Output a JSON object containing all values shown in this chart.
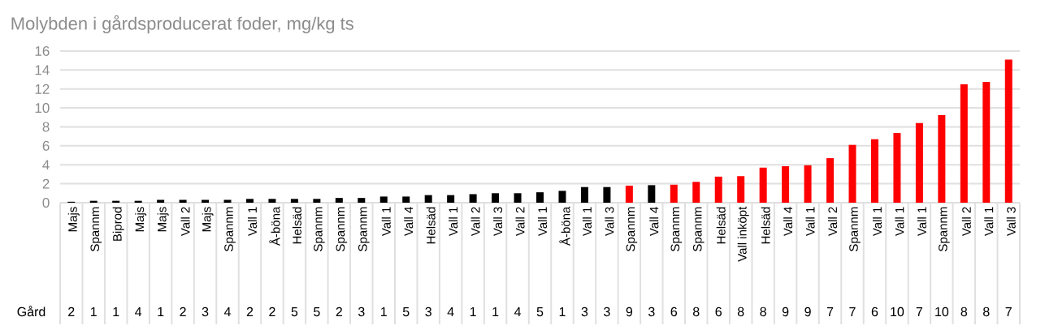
{
  "chart_data": {
    "type": "bar",
    "title": "Molybden i gårdsproducerat foder, mg/kg ts",
    "categories": [
      "Majs",
      "Spannm",
      "Biprod",
      "Majs",
      "Majs",
      "Vall 2",
      "Majs",
      "Spannm",
      "Vall 1",
      "Å-böna",
      "Helsäd",
      "Spannm",
      "Spannm",
      "Spannm",
      "Vall 1",
      "Vall 4",
      "Helsäd",
      "Vall 1",
      "Vall 2",
      "Vall 3",
      "Vall 2",
      "Vall 1",
      "Å-böna",
      "Vall 1",
      "Vall 3",
      "Spannm",
      "Vall 4",
      "Spannm",
      "Spannm",
      "Helsäd",
      "Vall inköpt",
      "Helsäd",
      "Vall 4",
      "Vall 1",
      "Vall 2",
      "Spannm",
      "Vall 1",
      "Vall 1",
      "Vall 1",
      "Spannm",
      "Vall 2",
      "Vall 1",
      "Vall 3"
    ],
    "values": [
      0.1,
      0.2,
      0.2,
      0.2,
      0.3,
      0.3,
      0.3,
      0.3,
      0.4,
      0.4,
      0.4,
      0.4,
      0.5,
      0.5,
      0.65,
      0.65,
      0.8,
      0.8,
      0.9,
      1.0,
      1.0,
      1.1,
      1.25,
      1.65,
      1.65,
      1.8,
      1.85,
      1.9,
      2.2,
      2.75,
      2.8,
      3.7,
      3.85,
      3.95,
      4.7,
      6.1,
      6.7,
      7.35,
      8.4,
      9.25,
      12.5,
      12.75,
      15.1
    ],
    "colors": [
      "#000000",
      "#000000",
      "#000000",
      "#000000",
      "#000000",
      "#000000",
      "#000000",
      "#000000",
      "#000000",
      "#000000",
      "#000000",
      "#000000",
      "#000000",
      "#000000",
      "#000000",
      "#000000",
      "#000000",
      "#000000",
      "#000000",
      "#000000",
      "#000000",
      "#000000",
      "#000000",
      "#000000",
      "#000000",
      "#ff0000",
      "#000000",
      "#ff0000",
      "#ff0000",
      "#ff0000",
      "#ff0000",
      "#ff0000",
      "#ff0000",
      "#ff0000",
      "#ff0000",
      "#ff0000",
      "#ff0000",
      "#ff0000",
      "#ff0000",
      "#ff0000",
      "#ff0000",
      "#ff0000",
      "#ff0000"
    ],
    "ylim": [
      0,
      16
    ],
    "yticks": [
      0,
      2,
      4,
      6,
      8,
      10,
      12,
      14,
      16
    ],
    "grid": "y",
    "annotations": [
      "Gård",
      "2",
      "1",
      "1",
      "4",
      "1",
      "2",
      "3",
      "4",
      "2",
      "2",
      "5",
      "5",
      "2",
      "3",
      "1",
      "5",
      "3",
      "4",
      "1",
      "1",
      "4",
      "5",
      "1",
      "3",
      "3",
      "9",
      "3",
      "6",
      "8",
      "6",
      "8",
      "8",
      "9",
      "9",
      "7",
      "7",
      "6",
      "10",
      "7",
      "10",
      "8",
      "8",
      "7"
    ]
  }
}
